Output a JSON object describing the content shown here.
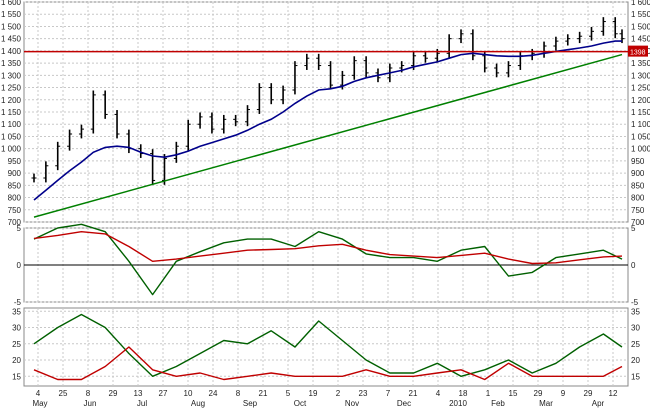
{
  "chart_data": [
    {
      "panel": "price",
      "type": "line",
      "subtype": "ohlc-bar",
      "x": [
        "2009-05-04",
        "2009-05-11",
        "2009-05-18",
        "2009-05-25",
        "2009-06-01",
        "2009-06-08",
        "2009-06-15",
        "2009-06-22",
        "2009-06-29",
        "2009-07-06",
        "2009-07-13",
        "2009-07-20",
        "2009-07-27",
        "2009-08-03",
        "2009-08-10",
        "2009-08-17",
        "2009-08-24",
        "2009-08-31",
        "2009-09-07",
        "2009-09-14",
        "2009-09-21",
        "2009-09-28",
        "2009-10-05",
        "2009-10-12",
        "2009-10-19",
        "2009-10-26",
        "2009-11-02",
        "2009-11-09",
        "2009-11-16",
        "2009-11-23",
        "2009-11-30",
        "2009-12-07",
        "2009-12-14",
        "2009-12-21",
        "2009-12-28",
        "2010-01-04",
        "2010-01-11",
        "2010-01-18",
        "2010-01-25",
        "2010-02-01",
        "2010-02-08",
        "2010-02-15",
        "2010-02-22",
        "2010-03-01",
        "2010-03-08",
        "2010-03-15",
        "2010-03-22",
        "2010-03-29",
        "2010-04-05",
        "2010-04-12",
        "2010-04-16"
      ],
      "series": [
        {
          "values": [
            880,
            930,
            1010,
            1060,
            1080,
            1220,
            1140,
            1060,
            1000,
            980,
            870,
            960,
            1010,
            1100,
            1130,
            1080,
            1120,
            1110,
            1160,
            1250,
            1200,
            1240,
            1340,
            1370,
            1340,
            1260,
            1300,
            1360,
            1310,
            1290,
            1330,
            1340,
            1380,
            1370,
            1390,
            1450,
            1470,
            1380,
            1330,
            1310,
            1340,
            1380,
            1390,
            1420,
            1440,
            1450,
            1460,
            1480,
            1520,
            1470,
            1450
          ],
          "style": "black-bars"
        },
        {
          "values": [
            790,
            830,
            870,
            910,
            945,
            985,
            1005,
            1010,
            1005,
            985,
            970,
            965,
            975,
            990,
            1010,
            1025,
            1040,
            1055,
            1075,
            1100,
            1120,
            1150,
            1185,
            1215,
            1240,
            1245,
            1255,
            1275,
            1290,
            1300,
            1310,
            1320,
            1335,
            1345,
            1355,
            1370,
            1385,
            1390,
            1385,
            1380,
            1378,
            1378,
            1382,
            1390,
            1398,
            1405,
            1412,
            1420,
            1432,
            1440,
            1440
          ],
          "style": "blue-line"
        }
      ],
      "reference_lines": [
        {
          "type": "horizontal",
          "y": 1397,
          "color": "#c00000"
        },
        {
          "type": "trendline",
          "from": [
            "2009-05-04",
            720
          ],
          "to": [
            "2010-04-16",
            1385
          ],
          "color": "#008000"
        }
      ],
      "price_label": "1398",
      "ylim": [
        700,
        1600
      ],
      "yticks": [
        "1 600",
        "1 550",
        "1 500",
        "1 450",
        "1 400",
        "1 350",
        "1 300",
        "1 250",
        "1 200",
        "1 150",
        "1 100",
        "1 050",
        "1 000",
        "950",
        "900",
        "850",
        "800",
        "750",
        "700"
      ],
      "grid": true
    },
    {
      "panel": "oscillator",
      "type": "line",
      "x": [
        "2009-05-04",
        "2009-05-18",
        "2009-06-01",
        "2009-06-15",
        "2009-06-29",
        "2009-07-13",
        "2009-07-27",
        "2009-08-10",
        "2009-08-24",
        "2009-09-07",
        "2009-09-21",
        "2009-10-05",
        "2009-10-19",
        "2009-11-02",
        "2009-11-16",
        "2009-11-30",
        "2009-12-14",
        "2009-12-28",
        "2010-01-11",
        "2010-01-25",
        "2010-02-08",
        "2010-02-22",
        "2010-03-08",
        "2010-03-22",
        "2010-04-05",
        "2010-04-16"
      ],
      "series": [
        {
          "values": [
            3.5,
            5.0,
            5.5,
            4.5,
            0.5,
            -4.0,
            0.5,
            1.8,
            3.0,
            3.5,
            3.5,
            2.5,
            4.5,
            3.5,
            1.5,
            1.0,
            1.0,
            0.5,
            2.0,
            2.5,
            -1.5,
            -1.0,
            1.0,
            1.5,
            2.0,
            0.8
          ],
          "color": "#006000"
        },
        {
          "values": [
            3.6,
            4.0,
            4.5,
            4.2,
            2.5,
            0.5,
            0.8,
            1.2,
            1.6,
            2.0,
            2.1,
            2.2,
            2.6,
            2.8,
            2.0,
            1.4,
            1.2,
            1.0,
            1.3,
            1.6,
            0.8,
            0.2,
            0.3,
            0.7,
            1.1,
            1.2
          ],
          "color": "#c00000"
        }
      ],
      "ylim": [
        -5,
        5
      ],
      "yticks": [
        "5",
        "0",
        "-5"
      ],
      "grid": true
    },
    {
      "panel": "dmi",
      "type": "line",
      "x": [
        "2009-05-04",
        "2009-05-18",
        "2009-06-01",
        "2009-06-15",
        "2009-06-29",
        "2009-07-13",
        "2009-07-27",
        "2009-08-10",
        "2009-08-24",
        "2009-09-07",
        "2009-09-21",
        "2009-10-05",
        "2009-10-19",
        "2009-11-02",
        "2009-11-16",
        "2009-11-30",
        "2009-12-14",
        "2009-12-28",
        "2010-01-11",
        "2010-01-25",
        "2010-02-08",
        "2010-02-22",
        "2010-03-08",
        "2010-03-22",
        "2010-04-05",
        "2010-04-16"
      ],
      "series": [
        {
          "values": [
            25,
            30,
            34,
            30,
            22,
            15,
            18,
            22,
            26,
            25,
            29,
            24,
            32,
            26,
            20,
            16,
            16,
            19,
            15,
            17,
            20,
            16,
            19,
            24,
            28,
            24
          ],
          "color": "#006000"
        },
        {
          "values": [
            17,
            14,
            14,
            18,
            24,
            17,
            15,
            16,
            14,
            15,
            16,
            15,
            15,
            15,
            17,
            15,
            15,
            16,
            17,
            14,
            19,
            15,
            15,
            15,
            15,
            18
          ],
          "color": "#c00000"
        }
      ],
      "ylim": [
        12,
        36
      ],
      "yticks": [
        "35",
        "30",
        "25",
        "20",
        "15"
      ],
      "grid": true
    }
  ],
  "time_axis": {
    "day_labels": [
      "4",
      "25",
      "8",
      "29",
      "13",
      "27",
      "10",
      "24",
      "8",
      "21",
      "5",
      "19",
      "2",
      "23",
      "7",
      "21",
      "4",
      "18",
      "1",
      "15",
      "29",
      "9",
      "29",
      "12"
    ],
    "month_labels": [
      "May",
      "Jun",
      "Jul",
      "Aug",
      "Sep",
      "Oct",
      "Nov",
      "Dec",
      "2010",
      "Feb",
      "Mar",
      "Apr"
    ]
  },
  "colors": {
    "price": "#000000",
    "ma": "#00008b",
    "resistance": "#c00000",
    "trend": "#008000",
    "osc_fast": "#006000",
    "osc_slow": "#c00000",
    "grid": "#c8c8c8"
  }
}
